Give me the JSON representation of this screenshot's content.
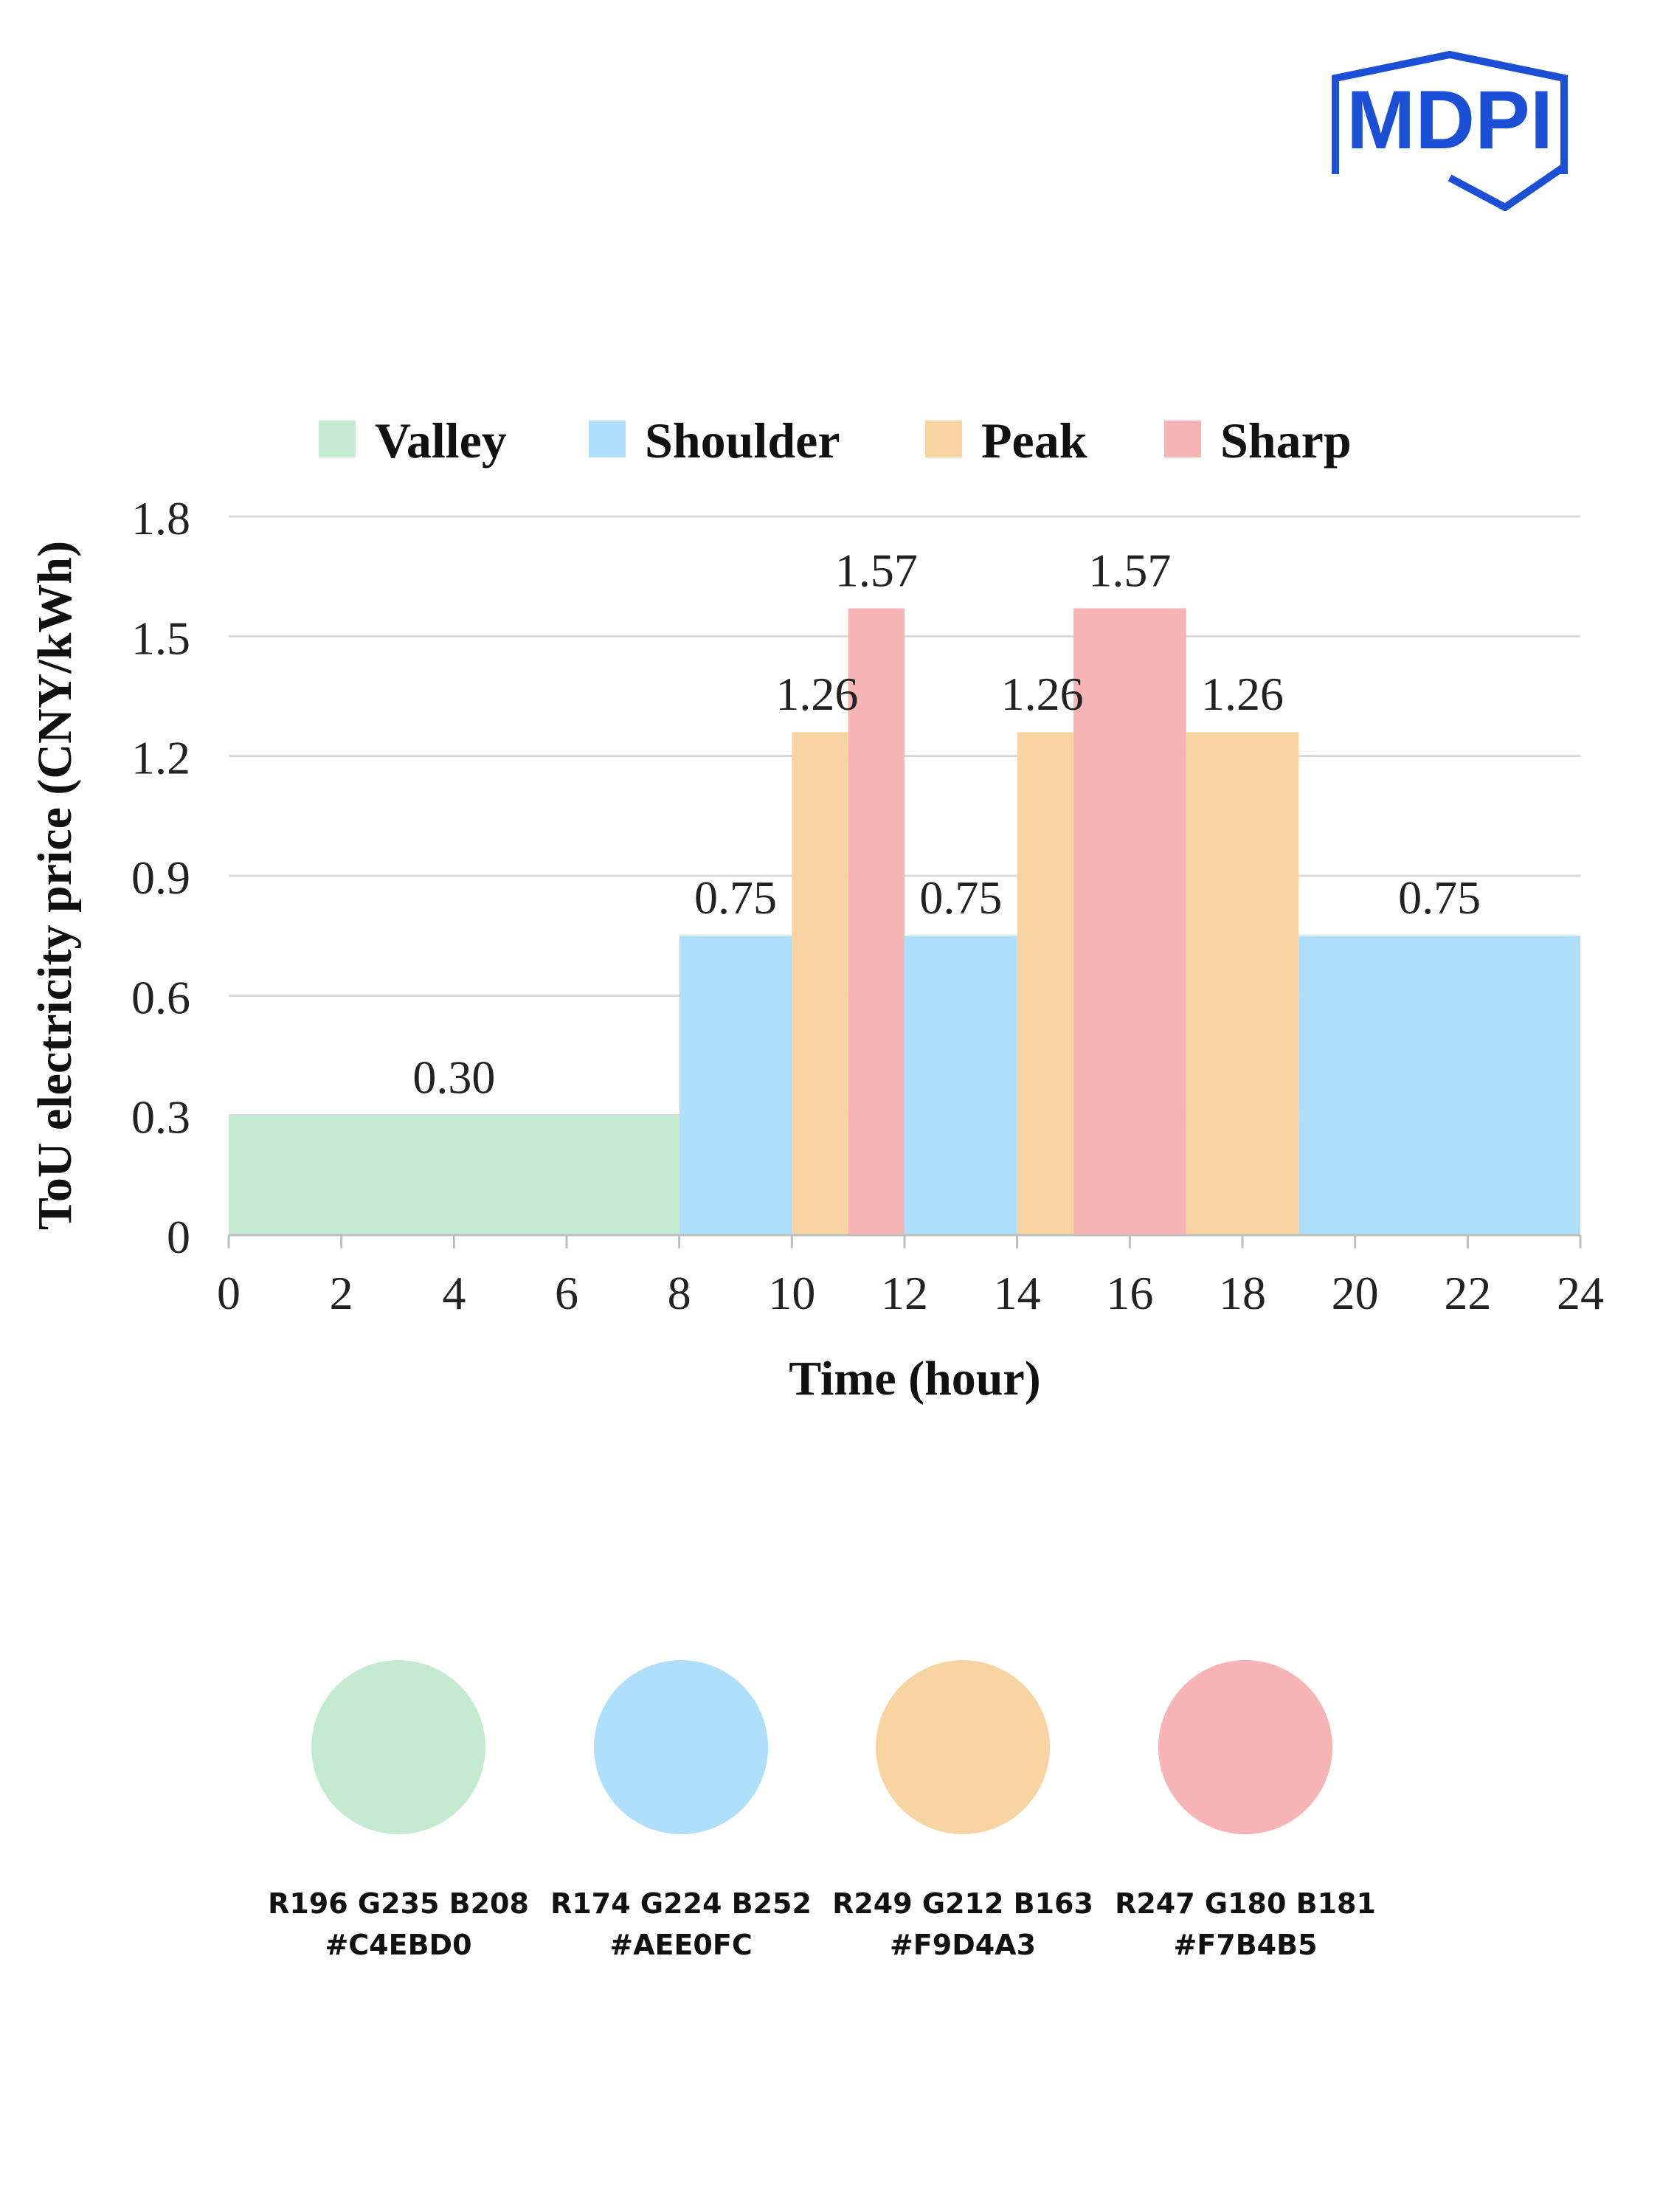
{
  "logo": {
    "text": "MDPI",
    "color": "#1a4fd6"
  },
  "chart_data": {
    "type": "bar",
    "xlabel": "Time (hour)",
    "ylabel": "ToU electricity price (CNY/kWh)",
    "xlim": [
      0,
      24
    ],
    "ylim": [
      0,
      1.8
    ],
    "xticks": [
      "0",
      "2",
      "4",
      "6",
      "8",
      "10",
      "12",
      "14",
      "16",
      "18",
      "20",
      "22",
      "24"
    ],
    "yticks": [
      "0",
      "0.3",
      "0.6",
      "0.9",
      "1.2",
      "1.5",
      "1.8"
    ],
    "grid": true,
    "legend_position": "top",
    "series": [
      {
        "name": "Valley",
        "color": "#C4EBD0"
      },
      {
        "name": "Shoulder",
        "color": "#AEE0FC"
      },
      {
        "name": "Peak",
        "color": "#F9D4A3"
      },
      {
        "name": "Sharp",
        "color": "#F7B4B5"
      }
    ],
    "segments": [
      {
        "series": "Valley",
        "start": 0,
        "end": 8,
        "value": 0.3,
        "label": "0.30"
      },
      {
        "series": "Shoulder",
        "start": 8,
        "end": 10,
        "value": 0.75,
        "label": "0.75"
      },
      {
        "series": "Peak",
        "start": 10,
        "end": 11,
        "value": 1.26,
        "label": "1.26"
      },
      {
        "series": "Sharp",
        "start": 11,
        "end": 12,
        "value": 1.57,
        "label": "1.57"
      },
      {
        "series": "Shoulder",
        "start": 12,
        "end": 14,
        "value": 0.75,
        "label": "0.75"
      },
      {
        "series": "Peak",
        "start": 14,
        "end": 15,
        "value": 1.26,
        "label": "1.26"
      },
      {
        "series": "Sharp",
        "start": 15,
        "end": 17,
        "value": 1.57,
        "label": "1.57"
      },
      {
        "series": "Peak",
        "start": 17,
        "end": 19,
        "value": 1.26,
        "label": "1.26"
      },
      {
        "series": "Shoulder",
        "start": 19,
        "end": 24,
        "value": 0.75,
        "label": "0.75"
      }
    ]
  },
  "palette": [
    {
      "rgb": "R196 G235 B208",
      "hex": "#C4EBD0",
      "color": "#C4EBD0"
    },
    {
      "rgb": "R174 G224 B252",
      "hex": "#AEE0FC",
      "color": "#AEE0FC"
    },
    {
      "rgb": "R249 G212 B163",
      "hex": "#F9D4A3",
      "color": "#F9D4A3"
    },
    {
      "rgb": "R247 G180 B181",
      "hex": "#F7B4B5",
      "color": "#F7B4B5"
    }
  ]
}
